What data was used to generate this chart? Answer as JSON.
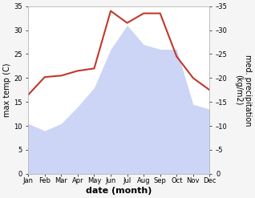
{
  "months": [
    "Jan",
    "Feb",
    "Mar",
    "Apr",
    "May",
    "Jun",
    "Jul",
    "Aug",
    "Sep",
    "Oct",
    "Nov",
    "Dec"
  ],
  "x": [
    1,
    2,
    3,
    4,
    5,
    6,
    7,
    8,
    9,
    10,
    11,
    12
  ],
  "temperature": [
    16.5,
    20.2,
    20.5,
    21.5,
    22.0,
    34.0,
    31.5,
    33.5,
    33.5,
    24.5,
    20.0,
    17.5
  ],
  "precipitation": [
    10.5,
    9.0,
    10.5,
    14.0,
    18.0,
    26.0,
    31.0,
    27.0,
    26.0,
    26.0,
    14.5,
    13.5
  ],
  "temp_color": "#c0392b",
  "precip_fill_color": "#c5cef5",
  "precip_fill_alpha": 0.85,
  "ylim": [
    0,
    35
  ],
  "xlabel": "date (month)",
  "ylabel_left": "max temp (C)",
  "ylabel_right": "med. precipitation\n(kg/m2)",
  "yticks": [
    0,
    5,
    10,
    15,
    20,
    25,
    30,
    35
  ],
  "right_tick_labels": [
    "0",
    "–5",
    "–10",
    "–15",
    "–20",
    "–25",
    "–30",
    "–35"
  ],
  "bg_color": "#f5f5f5",
  "axes_bg": "#ffffff",
  "spine_color": "#bbbbbb",
  "tick_label_size": 6,
  "axis_label_size": 7,
  "xlabel_size": 8
}
